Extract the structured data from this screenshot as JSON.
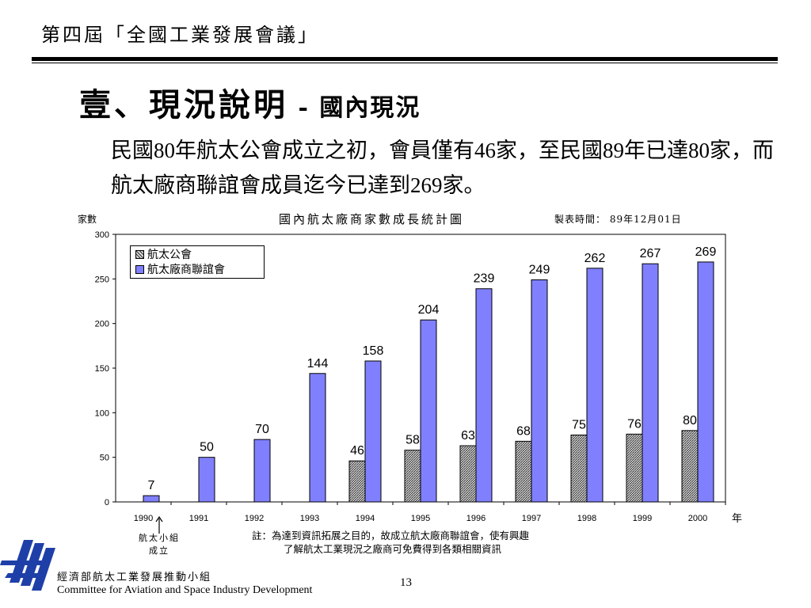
{
  "header": {
    "meeting": "第四屆「全國工業發展會議」"
  },
  "slide": {
    "title_main": "壹、現況說明",
    "title_sep": " - ",
    "title_sub": "國內現況",
    "body": "民國80年航太公會成立之初，會員僅有46家，至民國89年已達80家，而航太廠商聯誼會成員迄今已達到269家。"
  },
  "chart_data": {
    "type": "bar",
    "title": "國內航太廠商家數成長統計圖",
    "made_date": "製表時間： 89年12月01日",
    "ylabel": "家數",
    "xlabel": "年",
    "ylim": [
      0,
      300
    ],
    "yticks": [
      0,
      50,
      100,
      150,
      200,
      250,
      300
    ],
    "categories": [
      "1990",
      "1991",
      "1992",
      "1993",
      "1994",
      "1995",
      "1996",
      "1997",
      "1998",
      "1999",
      "2000"
    ],
    "series": [
      {
        "name": "航太公會",
        "color": "#8c8c8c",
        "values": [
          null,
          null,
          null,
          null,
          46,
          58,
          63,
          68,
          75,
          76,
          80
        ]
      },
      {
        "name": "航太廠商聯誼會",
        "color": "#8080ff",
        "values": [
          7,
          50,
          70,
          144,
          158,
          204,
          239,
          249,
          262,
          267,
          269
        ]
      }
    ],
    "grid": false,
    "legend_position": "top-left"
  },
  "annotation": {
    "milestone_line1": "航太小組",
    "milestone_line2": "成立",
    "note_line1": "註：為達到資訊拓展之目的，故成立航太廠商聯誼會，使有興趣",
    "note_line2": "了解航太工業現況之廠商可免費得到各類相關資訊"
  },
  "footer": {
    "org_zh": "經濟部航太工業發展推動小組",
    "org_en": "Committee for Aviation and Space Industry Development",
    "page": "13"
  }
}
